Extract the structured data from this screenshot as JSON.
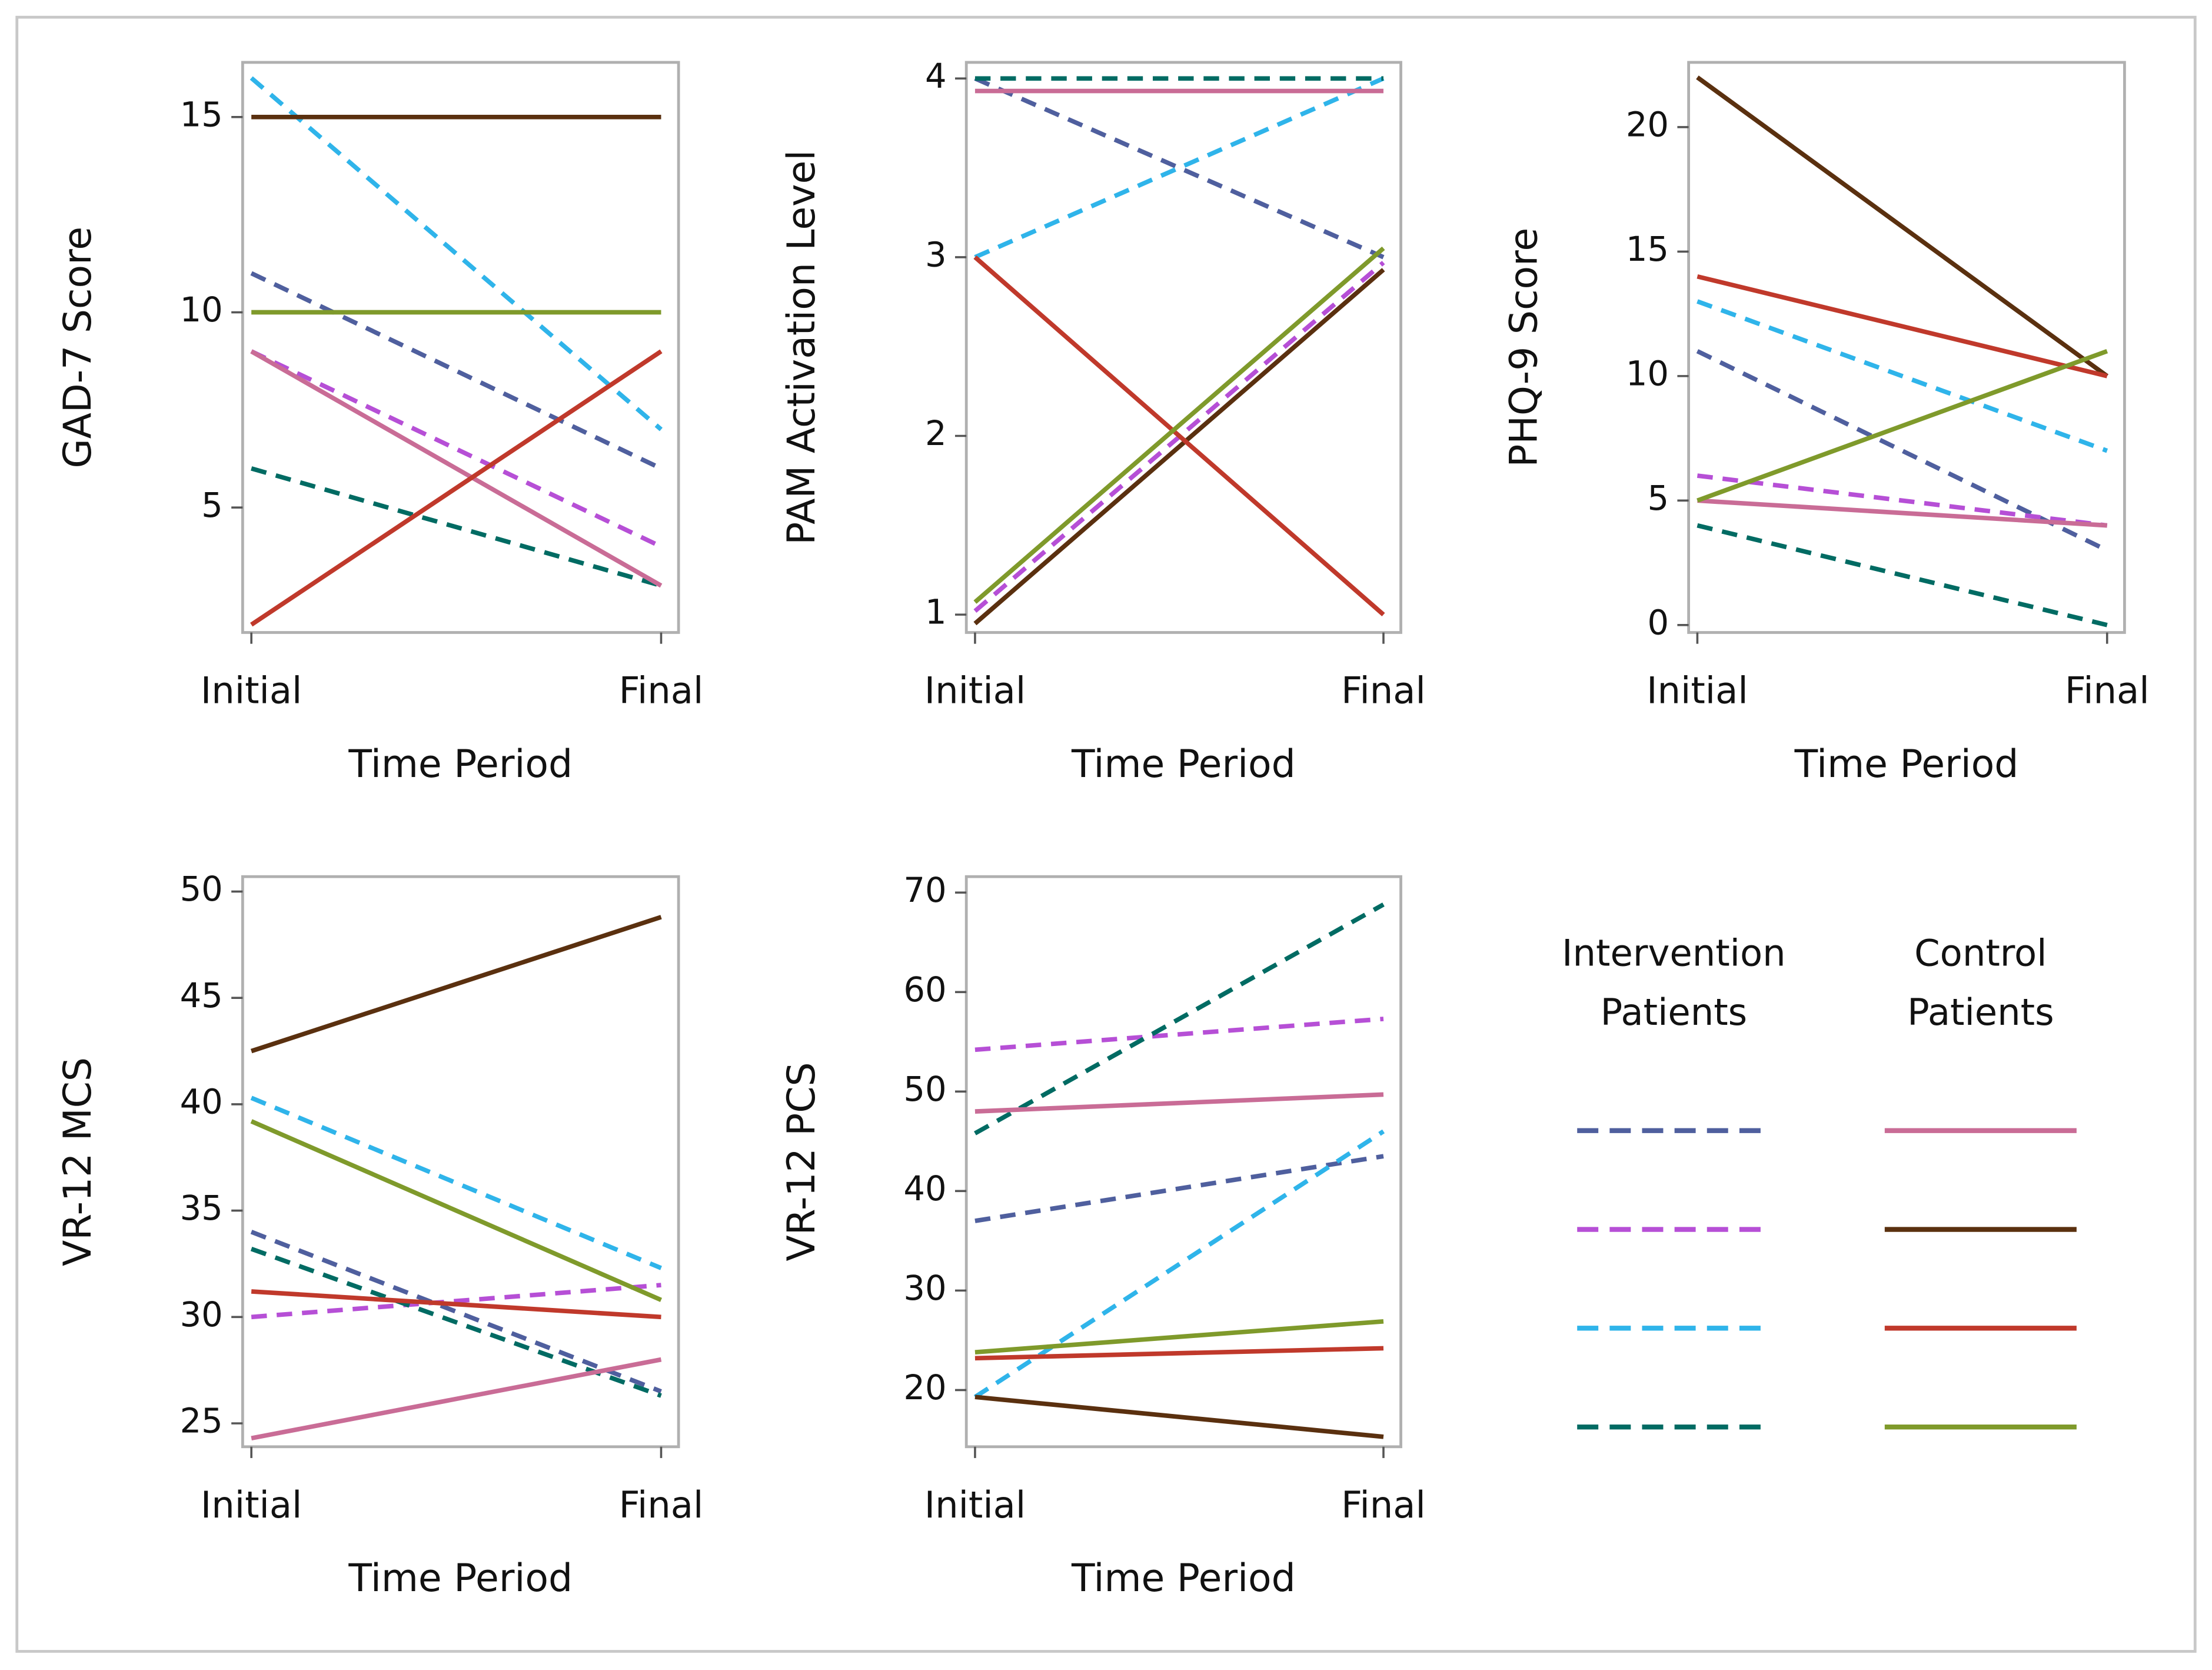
{
  "chart_data": [
    {
      "type": "line",
      "y_label": "GAD-7 Score",
      "x_label": "Time Period",
      "categories": [
        "Initial",
        "Final"
      ],
      "ylim": [
        1.8,
        16.4
      ],
      "yticks": [
        5,
        10,
        15
      ],
      "series": [
        {
          "color": "#4f5f9e",
          "dashed": true,
          "values": [
            11,
            6
          ]
        },
        {
          "color": "#b64fd6",
          "dashed": true,
          "values": [
            9,
            4
          ]
        },
        {
          "color": "#2fb4ea",
          "dashed": true,
          "values": [
            16,
            7
          ]
        },
        {
          "color": "#006b63",
          "dashed": true,
          "values": [
            6,
            3
          ]
        },
        {
          "color": "#c96c96",
          "dashed": false,
          "values": [
            9,
            3
          ]
        },
        {
          "color": "#5a300f",
          "dashed": false,
          "values": [
            15,
            15
          ]
        },
        {
          "color": "#c0392b",
          "dashed": false,
          "values": [
            2,
            9
          ]
        },
        {
          "color": "#7f9a2b",
          "dashed": false,
          "values": [
            10,
            10
          ]
        }
      ]
    },
    {
      "type": "line",
      "y_label": "PAM Activation Level",
      "x_label": "Time Period",
      "categories": [
        "Initial",
        "Final"
      ],
      "ylim": [
        0.9,
        4.09
      ],
      "yticks": [
        1,
        2,
        3,
        4
      ],
      "series": [
        {
          "color": "#4f5f9e",
          "dashed": true,
          "values": [
            4,
            3
          ]
        },
        {
          "color": "#b64fd6",
          "dashed": true,
          "values": [
            1.02,
            2.97
          ]
        },
        {
          "color": "#2fb4ea",
          "dashed": true,
          "values": [
            3,
            4
          ]
        },
        {
          "color": "#006b63",
          "dashed": true,
          "values": [
            4,
            4
          ]
        },
        {
          "color": "#c96c96",
          "dashed": false,
          "values": [
            3.93,
            3.93
          ]
        },
        {
          "color": "#5a300f",
          "dashed": false,
          "values": [
            0.95,
            2.93
          ]
        },
        {
          "color": "#c0392b",
          "dashed": false,
          "values": [
            3,
            1
          ]
        },
        {
          "color": "#7f9a2b",
          "dashed": false,
          "values": [
            1.07,
            3.05
          ]
        }
      ]
    },
    {
      "type": "line",
      "y_label": "PHQ-9 Score",
      "x_label": "Time Period",
      "categories": [
        "Initial",
        "Final"
      ],
      "ylim": [
        -0.3,
        22.6
      ],
      "yticks": [
        0,
        5,
        10,
        15,
        20
      ],
      "series": [
        {
          "color": "#4f5f9e",
          "dashed": true,
          "values": [
            11,
            3
          ]
        },
        {
          "color": "#b64fd6",
          "dashed": true,
          "values": [
            6,
            4
          ]
        },
        {
          "color": "#2fb4ea",
          "dashed": true,
          "values": [
            13,
            7
          ]
        },
        {
          "color": "#006b63",
          "dashed": true,
          "values": [
            4,
            0
          ]
        },
        {
          "color": "#c96c96",
          "dashed": false,
          "values": [
            5,
            4
          ]
        },
        {
          "color": "#5a300f",
          "dashed": false,
          "values": [
            22,
            10
          ]
        },
        {
          "color": "#c0392b",
          "dashed": false,
          "values": [
            14,
            10
          ]
        },
        {
          "color": "#7f9a2b",
          "dashed": false,
          "values": [
            5,
            11
          ]
        }
      ]
    },
    {
      "type": "line",
      "y_label": "VR-12 MCS",
      "x_label": "Time Period",
      "categories": [
        "Initial",
        "Final"
      ],
      "ylim": [
        23.9,
        50.7
      ],
      "yticks": [
        25,
        30,
        35,
        40,
        45,
        50
      ],
      "series": [
        {
          "color": "#4f5f9e",
          "dashed": true,
          "values": [
            34,
            26.5
          ]
        },
        {
          "color": "#b64fd6",
          "dashed": true,
          "values": [
            30,
            31.5
          ]
        },
        {
          "color": "#2fb4ea",
          "dashed": true,
          "values": [
            40.3,
            32.3
          ]
        },
        {
          "color": "#006b63",
          "dashed": true,
          "values": [
            33.2,
            26.3
          ]
        },
        {
          "color": "#c96c96",
          "dashed": false,
          "values": [
            24.3,
            28
          ]
        },
        {
          "color": "#5a300f",
          "dashed": false,
          "values": [
            42.5,
            48.8
          ]
        },
        {
          "color": "#c0392b",
          "dashed": false,
          "values": [
            31.2,
            30
          ]
        },
        {
          "color": "#7f9a2b",
          "dashed": false,
          "values": [
            39.2,
            30.8
          ]
        }
      ]
    },
    {
      "type": "line",
      "y_label": "VR-12 PCS",
      "x_label": "Time Period",
      "categories": [
        "Initial",
        "Final"
      ],
      "ylim": [
        14.3,
        71.6
      ],
      "yticks": [
        20,
        30,
        40,
        50,
        60,
        70
      ],
      "series": [
        {
          "color": "#4f5f9e",
          "dashed": true,
          "values": [
            37,
            43.5
          ]
        },
        {
          "color": "#b64fd6",
          "dashed": true,
          "values": [
            54.2,
            57.3
          ]
        },
        {
          "color": "#2fb4ea",
          "dashed": true,
          "values": [
            19.3,
            46
          ]
        },
        {
          "color": "#006b63",
          "dashed": true,
          "values": [
            45.8,
            68.8
          ]
        },
        {
          "color": "#c96c96",
          "dashed": false,
          "values": [
            48,
            49.7
          ]
        },
        {
          "color": "#5a300f",
          "dashed": false,
          "values": [
            19.3,
            15.3
          ]
        },
        {
          "color": "#c0392b",
          "dashed": false,
          "values": [
            23.2,
            24.2
          ]
        },
        {
          "color": "#7f9a2b",
          "dashed": false,
          "values": [
            23.8,
            26.9
          ]
        }
      ]
    }
  ],
  "legend": {
    "columns": [
      {
        "title": "Intervention Patients",
        "dashed": true,
        "colors": [
          "#4f5f9e",
          "#b64fd6",
          "#2fb4ea",
          "#006b63"
        ]
      },
      {
        "title": "Control Patients",
        "dashed": false,
        "colors": [
          "#c96c96",
          "#5a300f",
          "#c0392b",
          "#7f9a2b"
        ]
      }
    ]
  }
}
